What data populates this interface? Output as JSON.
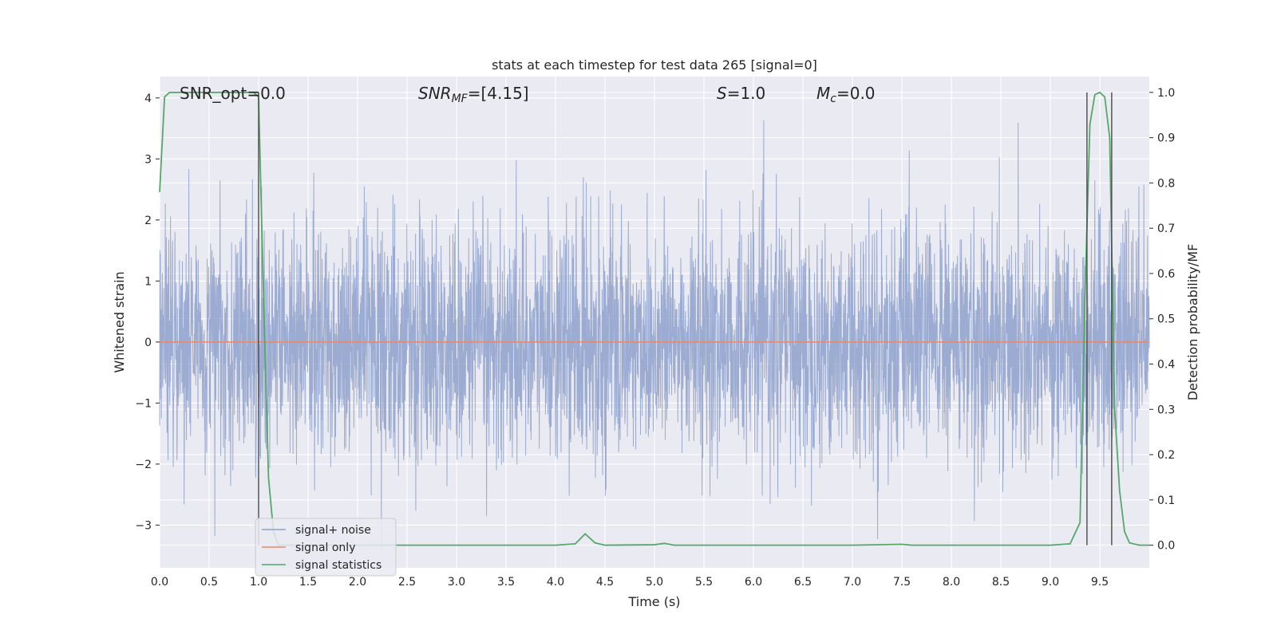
{
  "chart_data": {
    "type": "line",
    "title": "stats at each timestep for test data 265 [signal=0]",
    "xlabel": "Time (s)",
    "ylabel_left": "Whitened strain",
    "ylabel_right": "Detection probability/MF",
    "xlim": [
      0,
      10
    ],
    "ylim_left": [
      -3.7,
      4.35
    ],
    "ylim_right": [
      -0.05,
      1.035
    ],
    "x_ticks": [
      0.0,
      0.5,
      1.0,
      1.5,
      2.0,
      2.5,
      3.0,
      3.5,
      4.0,
      4.5,
      5.0,
      5.5,
      6.0,
      6.5,
      7.0,
      7.5,
      8.0,
      8.5,
      9.0,
      9.5
    ],
    "x_tick_labels": [
      "0.0",
      "0.5",
      "1.0",
      "1.5",
      "2.0",
      "2.5",
      "3.0",
      "3.5",
      "4.0",
      "4.5",
      "5.0",
      "5.5",
      "6.0",
      "6.5",
      "7.0",
      "7.5",
      "8.0",
      "8.5",
      "9.0",
      "9.5"
    ],
    "y_left_ticks": [
      -3,
      -2,
      -1,
      0,
      1,
      2,
      3,
      4
    ],
    "y_left_tick_labels": [
      "−3",
      "−2",
      "−1",
      "0",
      "1",
      "2",
      "3",
      "4"
    ],
    "y_right_ticks": [
      0.0,
      0.1,
      0.2,
      0.3,
      0.4,
      0.5,
      0.6,
      0.7,
      0.8,
      0.9,
      1.0
    ],
    "y_right_tick_labels": [
      "0.0",
      "0.1",
      "0.2",
      "0.3",
      "0.4",
      "0.5",
      "0.6",
      "0.7",
      "0.8",
      "0.9",
      "1.0"
    ],
    "grid": true,
    "legend_position": "lower-left",
    "annotations": {
      "snr_opt": "SNR_opt=0.0",
      "snr_mf_sym": "SNR",
      "snr_mf_sub": "MF",
      "snr_mf_val": "=[4.15]",
      "s_sym": "S",
      "s_val": "=1.0",
      "mc_sym": "M",
      "mc_sub": "c",
      "mc_val": "=0.0"
    },
    "series": [
      {
        "name": "signal+ noise",
        "color": "#8da0cb",
        "axis": "left",
        "description_values": "white noise, approx. ±2 sigma band, peaks to about 4.0 and -3.4",
        "noise_std": 0.95
      },
      {
        "name": "signal only",
        "color": "#e5896a",
        "axis": "left",
        "x": [
          0,
          10
        ],
        "y": [
          0,
          0
        ]
      },
      {
        "name": "signal statistics",
        "color": "#55a868",
        "axis": "right",
        "x": [
          0.0,
          0.05,
          0.1,
          0.2,
          0.5,
          0.9,
          0.95,
          1.0,
          1.05,
          1.1,
          1.15,
          1.2,
          1.5,
          2.0,
          3.0,
          4.0,
          4.2,
          4.3,
          4.4,
          4.5,
          5.0,
          5.1,
          5.2,
          5.3,
          6.0,
          7.0,
          7.5,
          7.6,
          8.0,
          9.0,
          9.2,
          9.3,
          9.35,
          9.4,
          9.45,
          9.5,
          9.55,
          9.6,
          9.65,
          9.7,
          9.75,
          9.8,
          9.9,
          10.0
        ],
        "y": [
          0.78,
          0.99,
          1.0,
          1.0,
          1.0,
          1.0,
          1.0,
          0.99,
          0.55,
          0.15,
          0.03,
          0.0,
          0.0,
          0.0,
          0.0,
          0.0,
          0.003,
          0.025,
          0.005,
          0.0,
          0.001,
          0.004,
          0.0,
          0.0,
          0.0,
          0.0,
          0.002,
          0.0,
          0.0,
          0.0,
          0.003,
          0.05,
          0.55,
          0.93,
          0.995,
          1.0,
          0.99,
          0.9,
          0.3,
          0.12,
          0.03,
          0.005,
          0.0,
          0.0
        ]
      }
    ],
    "vertical_markers": [
      {
        "x": 1.0,
        "y_range": [
          0.0,
          1.0
        ],
        "color": "#4a4a4a"
      },
      {
        "x": 9.37,
        "y_range": [
          0.0,
          1.0
        ],
        "color": "#4a4a4a"
      },
      {
        "x": 9.62,
        "y_range": [
          0.0,
          1.0
        ],
        "color": "#4a4a4a"
      }
    ]
  }
}
